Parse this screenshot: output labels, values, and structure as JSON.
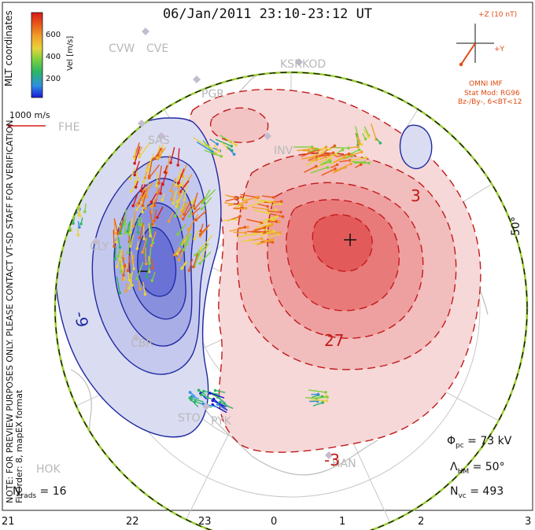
{
  "title": "06/Jan/2011  23:10-23:12 UT",
  "colorbar": {
    "label": "Vel [m/s]",
    "ticks": [
      "600",
      "400",
      "200"
    ],
    "colors": [
      "#1a1ad8",
      "#2f8fe0",
      "#2bb566",
      "#7fd13c",
      "#e8d23a",
      "#f0a02a",
      "#e85a1a",
      "#d81a1a"
    ]
  },
  "coordinates_label": "MLT coordinates",
  "velocity_scale": "1000 m/s",
  "side_notes": {
    "preview": "NOTE: FOR PREVIEW PURPOSES ONLY. PLEASE CONTACT VT-SD STAFF FOR VERIFICATION.",
    "fit": "FitOrder: 8, mapEX format"
  },
  "imf": {
    "axis_z": "+Z (10 nT)",
    "axis_y": "+Y",
    "source": "OMNI IMF",
    "stat_mod": "Stat Mod: RG96",
    "condition": "Bz-/By-, 6<BT<12"
  },
  "stations": [
    "CVW",
    "CVE",
    "KSR",
    "KOD",
    "PGR",
    "FHE",
    "SAS",
    "INV",
    "CLY",
    "CBR",
    "STO",
    "PYK",
    "HOK",
    "HAN"
  ],
  "contour_labels": [
    "-9",
    "3",
    "27",
    "-3",
    "3"
  ],
  "latitude_label": "50°",
  "stats": {
    "phi_pc": "73 kV",
    "lambda_hm": "50°",
    "n_vc": "493",
    "n_rads": "16"
  },
  "mlt_labels": [
    "21",
    "22",
    "23",
    "0",
    "1",
    "2",
    "3"
  ],
  "palette": {
    "positive": "#e83a3a",
    "negative": "#2f3fb0",
    "boundary": "#9acd32"
  }
}
